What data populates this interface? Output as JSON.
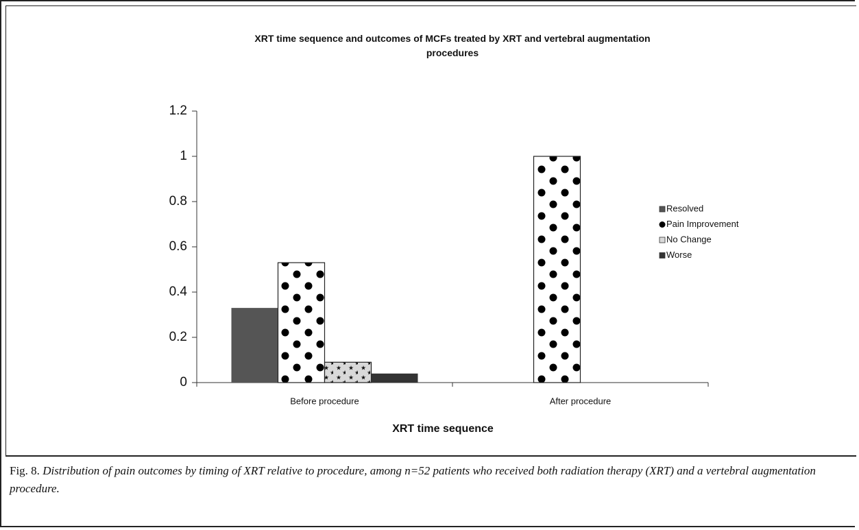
{
  "chart_data": {
    "type": "bar",
    "title": "XRT time sequence and outcomes of MCFs treated by XRT and vertebral augmentation procedures",
    "xlabel": "XRT time sequence",
    "categories": [
      "Before procedure",
      "After procedure"
    ],
    "series": [
      {
        "name": "Resolved",
        "color": "#555555",
        "values": [
          0.33,
          0
        ]
      },
      {
        "name": "Pain Improvement",
        "color": "#000000",
        "pattern": "dots",
        "values": [
          0.53,
          1
        ]
      },
      {
        "name": "No Change",
        "color": "#d9d9d9",
        "pattern": "stars",
        "values": [
          0.09,
          0
        ]
      },
      {
        "name": "Worse",
        "color": "#333333",
        "values": [
          0.04,
          0
        ]
      }
    ],
    "ylim": [
      0,
      1.2
    ],
    "yticks": [
      0,
      0.2,
      0.4,
      0.6,
      0.8,
      1,
      1.2
    ],
    "grid": false,
    "legend": "right"
  },
  "caption": {
    "label": "Fig. 8.",
    "text": "Distribution of pain outcomes by timing of XRT relative to procedure, among n=52 patients who received both radiation therapy (XRT) and a vertebral augmentation procedure."
  }
}
